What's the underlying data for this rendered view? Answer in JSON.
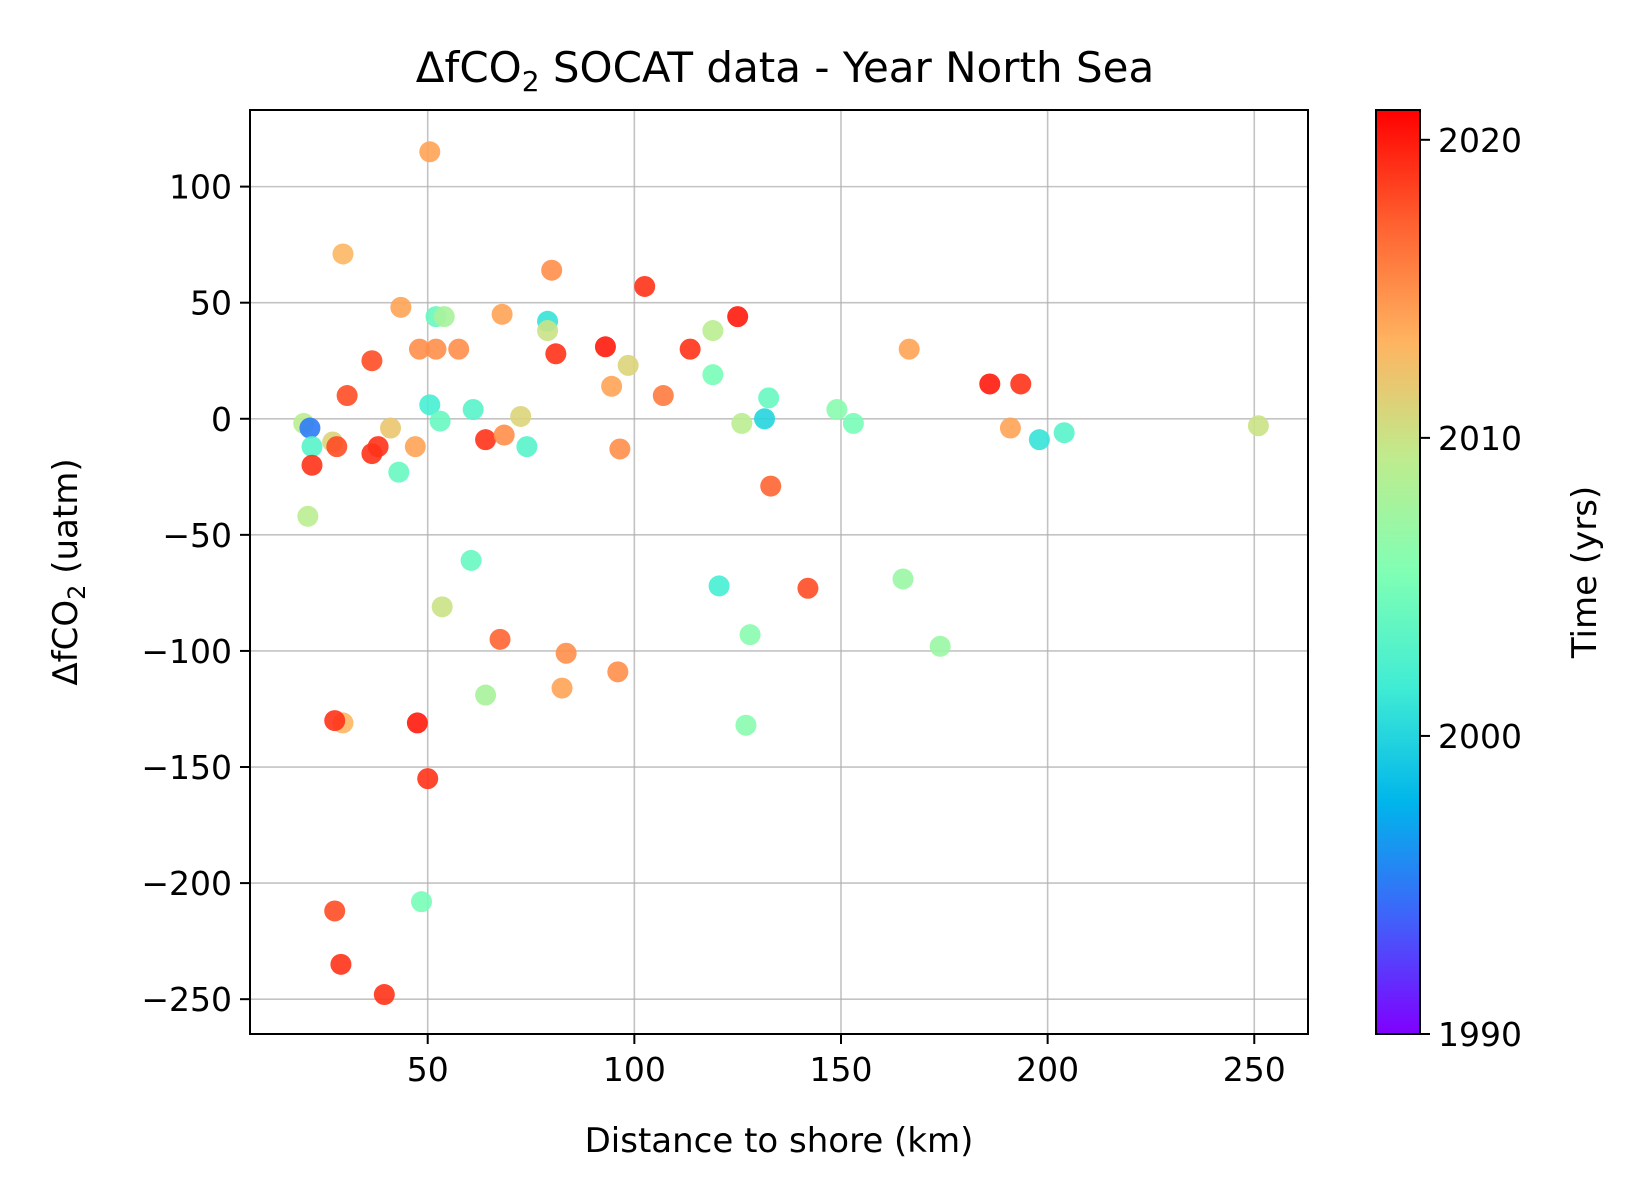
{
  "chart_data": {
    "type": "scatter",
    "title": "ΔfCO",
    "title_sub": "2",
    "title_rest": " SOCAT data - Year North Sea",
    "xlabel": "Distance to shore (km)",
    "ylabel": "ΔfCO",
    "ylabel_sub": "2",
    "ylabel_rest": " (uatm)",
    "xlim": [
      7,
      263
    ],
    "ylim": [
      -265,
      133
    ],
    "xticks": [
      50,
      100,
      150,
      200,
      250
    ],
    "yticks": [
      100,
      50,
      0,
      -50,
      -100,
      -150,
      -200,
      -250
    ],
    "xtick_labels": [
      "50",
      "100",
      "150",
      "200",
      "250"
    ],
    "ytick_labels": [
      "100",
      "50",
      "0",
      "−50",
      "−100",
      "−150",
      "−200",
      "−250"
    ],
    "grid": true,
    "colorbar": {
      "label": "Time (yrs)",
      "range": [
        1990,
        2021
      ],
      "ticks": [
        2020,
        2010,
        2000,
        1990
      ],
      "tick_labels": [
        "2020",
        "2010",
        "2000",
        "1990"
      ],
      "colormap": "rainbow"
    },
    "points": [
      {
        "x": 20,
        "y": -2,
        "year": 2009
      },
      {
        "x": 21.5,
        "y": -4,
        "year": 1995
      },
      {
        "x": 22,
        "y": -12,
        "year": 2003
      },
      {
        "x": 22,
        "y": -20,
        "year": 2019
      },
      {
        "x": 21,
        "y": -42,
        "year": 2009
      },
      {
        "x": 27,
        "y": -10,
        "year": 2011
      },
      {
        "x": 28,
        "y": -12,
        "year": 2018
      },
      {
        "x": 29.5,
        "y": 71,
        "year": 2013
      },
      {
        "x": 30.5,
        "y": 10,
        "year": 2018
      },
      {
        "x": 29.5,
        "y": -131,
        "year": 2013
      },
      {
        "x": 27.5,
        "y": -130,
        "year": 2019
      },
      {
        "x": 27.5,
        "y": -212,
        "year": 2018
      },
      {
        "x": 29,
        "y": -235,
        "year": 2019
      },
      {
        "x": 36.5,
        "y": 25,
        "year": 2018
      },
      {
        "x": 36.5,
        "y": -15,
        "year": 2019
      },
      {
        "x": 38,
        "y": -12,
        "year": 2019
      },
      {
        "x": 39.5,
        "y": -248,
        "year": 2019
      },
      {
        "x": 41,
        "y": -4,
        "year": 2012
      },
      {
        "x": 43.5,
        "y": 48,
        "year": 2014
      },
      {
        "x": 43,
        "y": -23,
        "year": 2004
      },
      {
        "x": 47,
        "y": -12,
        "year": 2014
      },
      {
        "x": 48,
        "y": 30,
        "year": 2015
      },
      {
        "x": 47.5,
        "y": -131,
        "year": 2020
      },
      {
        "x": 48.5,
        "y": -208,
        "year": 2005
      },
      {
        "x": 50.5,
        "y": 115,
        "year": 2014
      },
      {
        "x": 50.5,
        "y": 6,
        "year": 2002
      },
      {
        "x": 50,
        "y": -155,
        "year": 2019
      },
      {
        "x": 52,
        "y": 44,
        "year": 2004
      },
      {
        "x": 52,
        "y": 30,
        "year": 2015
      },
      {
        "x": 53,
        "y": -1,
        "year": 2004
      },
      {
        "x": 54,
        "y": 44,
        "year": 2008
      },
      {
        "x": 53.5,
        "y": -81,
        "year": 2010
      },
      {
        "x": 57.5,
        "y": 30,
        "year": 2015
      },
      {
        "x": 60.5,
        "y": -61,
        "year": 2004
      },
      {
        "x": 61,
        "y": 4,
        "year": 2003
      },
      {
        "x": 64,
        "y": -9,
        "year": 2019
      },
      {
        "x": 64,
        "y": -119,
        "year": 2008
      },
      {
        "x": 67.5,
        "y": -95,
        "year": 2017
      },
      {
        "x": 68,
        "y": 45,
        "year": 2014
      },
      {
        "x": 68.5,
        "y": -7,
        "year": 2015
      },
      {
        "x": 72.5,
        "y": 1,
        "year": 2011
      },
      {
        "x": 74,
        "y": -12,
        "year": 2003
      },
      {
        "x": 79,
        "y": 42,
        "year": 2001
      },
      {
        "x": 79,
        "y": 38,
        "year": 2010
      },
      {
        "x": 80,
        "y": 64,
        "year": 2015
      },
      {
        "x": 81,
        "y": 28,
        "year": 2019
      },
      {
        "x": 82.5,
        "y": -116,
        "year": 2014
      },
      {
        "x": 83.5,
        "y": -101,
        "year": 2015
      },
      {
        "x": 93,
        "y": 31,
        "year": 2020
      },
      {
        "x": 94.5,
        "y": 14,
        "year": 2014
      },
      {
        "x": 96,
        "y": -109,
        "year": 2015
      },
      {
        "x": 96.5,
        "y": -13,
        "year": 2015
      },
      {
        "x": 98.5,
        "y": 23,
        "year": 2011
      },
      {
        "x": 102.5,
        "y": 57,
        "year": 2019
      },
      {
        "x": 107,
        "y": 10,
        "year": 2016
      },
      {
        "x": 113.5,
        "y": 30,
        "year": 2019
      },
      {
        "x": 119,
        "y": 38,
        "year": 2009
      },
      {
        "x": 119,
        "y": 19,
        "year": 2005
      },
      {
        "x": 120.5,
        "y": -72,
        "year": 2002
      },
      {
        "x": 125,
        "y": 44,
        "year": 2020
      },
      {
        "x": 126,
        "y": -2,
        "year": 2009
      },
      {
        "x": 127,
        "y": -132,
        "year": 2006
      },
      {
        "x": 128,
        "y": -93,
        "year": 2006
      },
      {
        "x": 131.5,
        "y": 0,
        "year": 2000
      },
      {
        "x": 132.5,
        "y": 9,
        "year": 2004
      },
      {
        "x": 133,
        "y": -29,
        "year": 2017
      },
      {
        "x": 142,
        "y": -73,
        "year": 2018
      },
      {
        "x": 149,
        "y": 4,
        "year": 2006
      },
      {
        "x": 153,
        "y": -2,
        "year": 2005
      },
      {
        "x": 165,
        "y": -69,
        "year": 2007
      },
      {
        "x": 166.5,
        "y": 30,
        "year": 2014
      },
      {
        "x": 174,
        "y": -98,
        "year": 2007
      },
      {
        "x": 186,
        "y": 15,
        "year": 2020
      },
      {
        "x": 191,
        "y": -4,
        "year": 2014
      },
      {
        "x": 193.5,
        "y": 15,
        "year": 2019
      },
      {
        "x": 198,
        "y": -9,
        "year": 2001
      },
      {
        "x": 204,
        "y": -6,
        "year": 2003
      },
      {
        "x": 251,
        "y": -3,
        "year": 2010
      }
    ]
  }
}
